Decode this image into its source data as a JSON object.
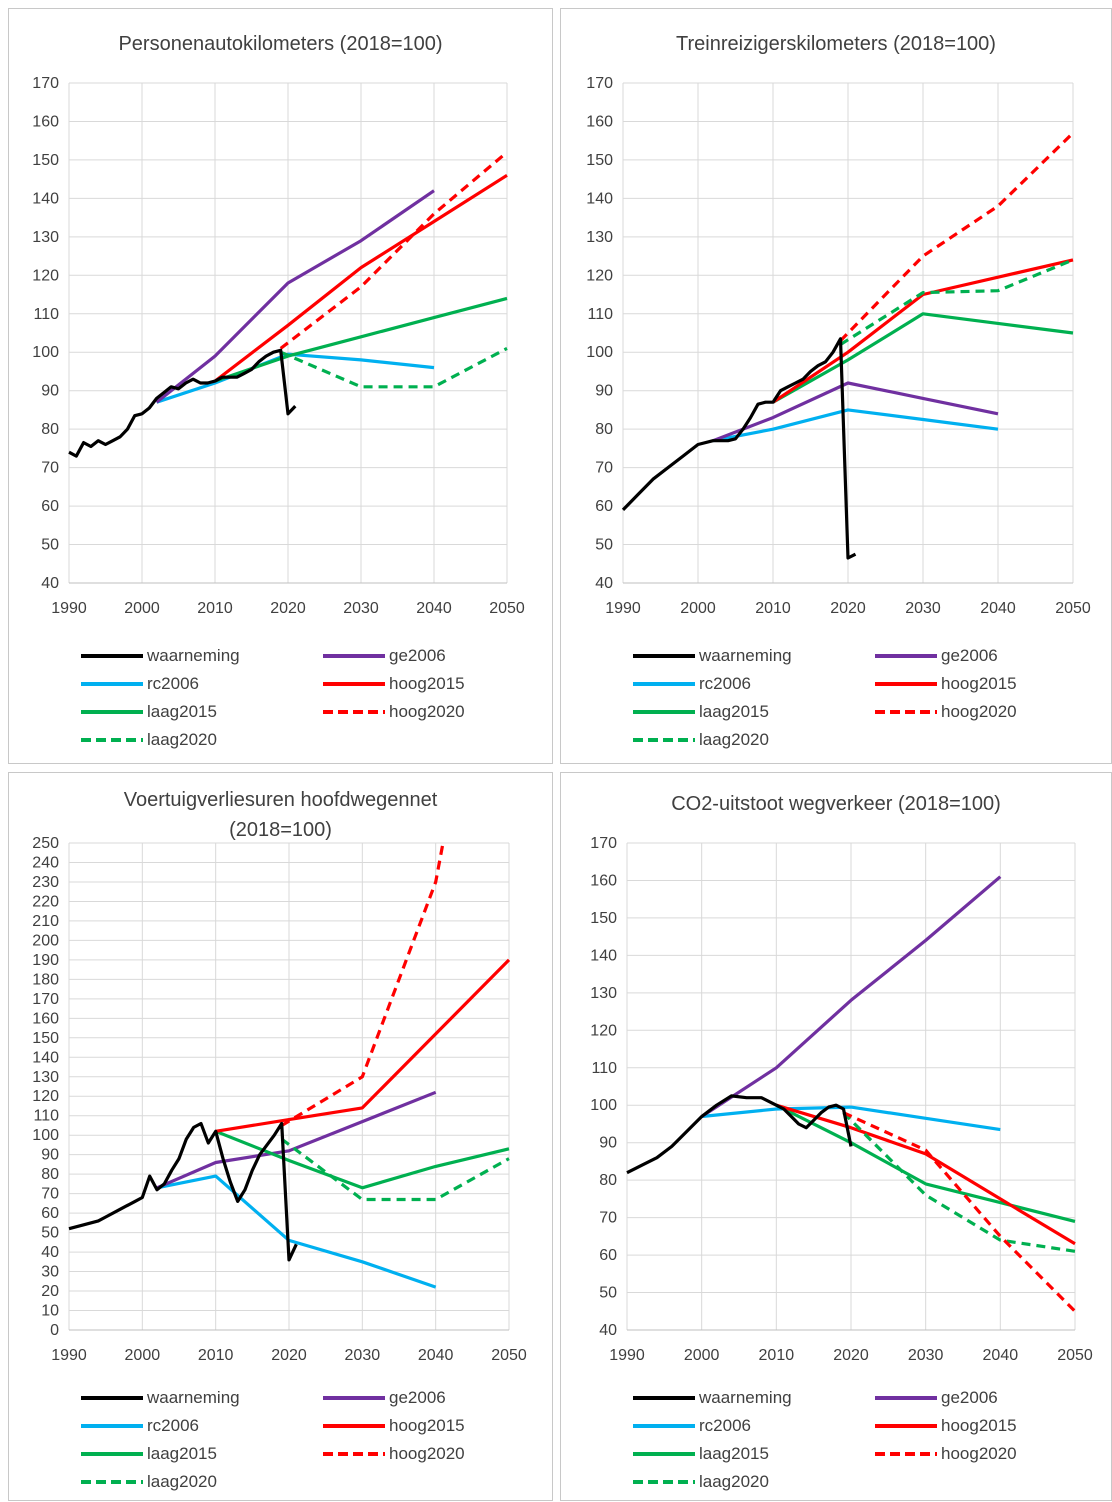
{
  "legend_labels": [
    "waarneming",
    "ge2006",
    "rc2006",
    "hoog2015",
    "laag2015",
    "hoog2020",
    "laag2020"
  ],
  "series_styles": {
    "waarneming": {
      "color": "#000000",
      "dash": false
    },
    "ge2006": {
      "color": "#7030a0",
      "dash": false
    },
    "rc2006": {
      "color": "#00b0f0",
      "dash": false
    },
    "hoog2015": {
      "color": "#ff0000",
      "dash": false
    },
    "laag2015": {
      "color": "#00b050",
      "dash": false
    },
    "hoog2020": {
      "color": "#ff0000",
      "dash": true
    },
    "laag2020": {
      "color": "#00b050",
      "dash": true
    }
  },
  "chart_data": [
    {
      "type": "line",
      "title": "Personenautokilometers (2018=100)",
      "xlim": [
        1990,
        2050
      ],
      "ylim": [
        40,
        170
      ],
      "ystep": 10,
      "xticks": [
        1990,
        2000,
        2010,
        2020,
        2030,
        2040,
        2050
      ],
      "series": [
        {
          "name": "waarneming",
          "points": [
            [
              1990,
              74
            ],
            [
              1991,
              73
            ],
            [
              1992,
              76.5
            ],
            [
              1993,
              75.5
            ],
            [
              1994,
              77
            ],
            [
              1995,
              76
            ],
            [
              1996,
              77
            ],
            [
              1997,
              78
            ],
            [
              1998,
              80
            ],
            [
              1999,
              83.5
            ],
            [
              2000,
              84
            ],
            [
              2001,
              85.5
            ],
            [
              2002,
              88
            ],
            [
              2003,
              89.5
            ],
            [
              2004,
              91
            ],
            [
              2005,
              90.5
            ],
            [
              2006,
              92
            ],
            [
              2007,
              93
            ],
            [
              2008,
              92
            ],
            [
              2009,
              92
            ],
            [
              2010,
              92.5
            ],
            [
              2011,
              93.5
            ],
            [
              2012,
              93.5
            ],
            [
              2013,
              93.5
            ],
            [
              2014,
              94.5
            ],
            [
              2015,
              95.5
            ],
            [
              2016,
              97.5
            ],
            [
              2017,
              99
            ],
            [
              2018,
              100
            ],
            [
              2019,
              100.5
            ],
            [
              2020,
              84
            ],
            [
              2021,
              86
            ]
          ]
        },
        {
          "name": "ge2006",
          "points": [
            [
              2002,
              87
            ],
            [
              2010,
              99
            ],
            [
              2020,
              118
            ],
            [
              2030,
              129
            ],
            [
              2040,
              142
            ]
          ]
        },
        {
          "name": "rc2006",
          "points": [
            [
              2002,
              87
            ],
            [
              2010,
              92
            ],
            [
              2020,
              99.5
            ],
            [
              2030,
              98
            ],
            [
              2040,
              96
            ]
          ]
        },
        {
          "name": "hoog2015",
          "points": [
            [
              2010,
              92.5
            ],
            [
              2020,
              107
            ],
            [
              2030,
              122
            ],
            [
              2040,
              134
            ],
            [
              2050,
              146
            ]
          ]
        },
        {
          "name": "laag2015",
          "points": [
            [
              2010,
              92.5
            ],
            [
              2020,
              99
            ],
            [
              2030,
              104
            ],
            [
              2040,
              109
            ],
            [
              2050,
              114
            ]
          ]
        },
        {
          "name": "hoog2020",
          "points": [
            [
              2019,
              101
            ],
            [
              2030,
              117
            ],
            [
              2040,
              136
            ],
            [
              2050,
              152
            ]
          ]
        },
        {
          "name": "laag2020",
          "points": [
            [
              2019,
              100
            ],
            [
              2030,
              91
            ],
            [
              2040,
              91
            ],
            [
              2050,
              101
            ]
          ]
        }
      ]
    },
    {
      "type": "line",
      "title": "Treinreizigerskilometers (2018=100)",
      "xlim": [
        1990,
        2050
      ],
      "ylim": [
        40,
        170
      ],
      "ystep": 10,
      "xticks": [
        1990,
        2000,
        2010,
        2020,
        2030,
        2040,
        2050
      ],
      "series": [
        {
          "name": "waarneming",
          "points": [
            [
              1990,
              59
            ],
            [
              1992,
              63
            ],
            [
              1994,
              67
            ],
            [
              1996,
              70
            ],
            [
              1998,
              73
            ],
            [
              2000,
              76
            ],
            [
              2002,
              77
            ],
            [
              2004,
              77
            ],
            [
              2005,
              77.5
            ],
            [
              2006,
              80
            ],
            [
              2007,
              83
            ],
            [
              2008,
              86.5
            ],
            [
              2009,
              87
            ],
            [
              2010,
              87
            ],
            [
              2011,
              90
            ],
            [
              2012,
              91
            ],
            [
              2013,
              92
            ],
            [
              2014,
              93
            ],
            [
              2015,
              95
            ],
            [
              2016,
              96.5
            ],
            [
              2017,
              97.5
            ],
            [
              2018,
              100
            ],
            [
              2019,
              103.5
            ],
            [
              2020,
              46.5
            ],
            [
              2021,
              47.5
            ]
          ]
        },
        {
          "name": "ge2006",
          "points": [
            [
              2002,
              77
            ],
            [
              2010,
              83
            ],
            [
              2020,
              92
            ],
            [
              2030,
              88
            ],
            [
              2040,
              84
            ]
          ]
        },
        {
          "name": "rc2006",
          "points": [
            [
              2002,
              77
            ],
            [
              2010,
              80
            ],
            [
              2020,
              85
            ],
            [
              2030,
              82.5
            ],
            [
              2040,
              80
            ]
          ]
        },
        {
          "name": "hoog2015",
          "points": [
            [
              2010,
              87
            ],
            [
              2020,
              100
            ],
            [
              2030,
              115
            ],
            [
              2040,
              119.5
            ],
            [
              2050,
              124
            ]
          ]
        },
        {
          "name": "laag2015",
          "points": [
            [
              2010,
              87
            ],
            [
              2020,
              98
            ],
            [
              2030,
              110
            ],
            [
              2040,
              107.5
            ],
            [
              2050,
              105
            ]
          ]
        },
        {
          "name": "hoog2020",
          "points": [
            [
              2019,
              103
            ],
            [
              2030,
              125
            ],
            [
              2040,
              138
            ],
            [
              2050,
              157
            ]
          ]
        },
        {
          "name": "laag2020",
          "points": [
            [
              2019,
              102
            ],
            [
              2030,
              115.5
            ],
            [
              2040,
              116
            ],
            [
              2050,
              124
            ]
          ]
        }
      ]
    },
    {
      "type": "line",
      "title": "Voertuigverliesuren hoofdwegennet (2018=100)",
      "title_lines": [
        "Voertuigverliesuren hoofdwegennet",
        "(2018=100)"
      ],
      "xlim": [
        1990,
        2050
      ],
      "ylim": [
        0,
        250
      ],
      "ystep": 10,
      "xticks": [
        1990,
        2000,
        2010,
        2020,
        2030,
        2040,
        2050
      ],
      "series": [
        {
          "name": "waarneming",
          "points": [
            [
              1990,
              52
            ],
            [
              1992,
              54
            ],
            [
              1994,
              56
            ],
            [
              1995,
              58
            ],
            [
              1997,
              62
            ],
            [
              1999,
              66
            ],
            [
              2000,
              68
            ],
            [
              2001,
              79
            ],
            [
              2002,
              72
            ],
            [
              2003,
              75
            ],
            [
              2004,
              82
            ],
            [
              2005,
              88
            ],
            [
              2006,
              98
            ],
            [
              2007,
              104
            ],
            [
              2008,
              106
            ],
            [
              2009,
              96
            ],
            [
              2010,
              102
            ],
            [
              2011,
              88
            ],
            [
              2012,
              76
            ],
            [
              2013,
              66
            ],
            [
              2014,
              72
            ],
            [
              2015,
              82
            ],
            [
              2016,
              90
            ],
            [
              2017,
              95
            ],
            [
              2018,
              100
            ],
            [
              2019,
              106
            ],
            [
              2020,
              36
            ],
            [
              2021,
              44
            ]
          ]
        },
        {
          "name": "ge2006",
          "points": [
            [
              2002,
              73
            ],
            [
              2010,
              86
            ],
            [
              2020,
              92
            ],
            [
              2030,
              107
            ],
            [
              2040,
              122
            ]
          ]
        },
        {
          "name": "rc2006",
          "points": [
            [
              2002,
              73
            ],
            [
              2010,
              79
            ],
            [
              2020,
              46
            ],
            [
              2030,
              35
            ],
            [
              2040,
              22
            ]
          ]
        },
        {
          "name": "hoog2015",
          "points": [
            [
              2010,
              102
            ],
            [
              2020,
              108
            ],
            [
              2030,
              114
            ],
            [
              2040,
              152
            ],
            [
              2050,
              190
            ]
          ]
        },
        {
          "name": "laag2015",
          "points": [
            [
              2010,
              102
            ],
            [
              2020,
              87
            ],
            [
              2030,
              73
            ],
            [
              2040,
              84
            ],
            [
              2050,
              93
            ]
          ]
        },
        {
          "name": "hoog2020",
          "points": [
            [
              2019,
              105
            ],
            [
              2030,
              130
            ],
            [
              2040,
              230
            ],
            [
              2041,
              250
            ]
          ]
        },
        {
          "name": "laag2020",
          "points": [
            [
              2019,
              98
            ],
            [
              2030,
              67
            ],
            [
              2040,
              67
            ],
            [
              2050,
              88
            ]
          ]
        }
      ]
    },
    {
      "type": "line",
      "title": "CO2-uitstoot wegverkeer (2018=100)",
      "xlim": [
        1990,
        2050
      ],
      "ylim": [
        40,
        170
      ],
      "ystep": 10,
      "xticks": [
        1990,
        2000,
        2010,
        2020,
        2030,
        2040,
        2050
      ],
      "series": [
        {
          "name": "waarneming",
          "points": [
            [
              1990,
              82
            ],
            [
              1992,
              84
            ],
            [
              1994,
              86
            ],
            [
              1996,
              89
            ],
            [
              1998,
              93
            ],
            [
              2000,
              97
            ],
            [
              2002,
              100
            ],
            [
              2004,
              102.5
            ],
            [
              2006,
              102
            ],
            [
              2008,
              102
            ],
            [
              2010,
              100
            ],
            [
              2011,
              99
            ],
            [
              2012,
              97
            ],
            [
              2013,
              95
            ],
            [
              2014,
              94
            ],
            [
              2015,
              96
            ],
            [
              2016,
              98
            ],
            [
              2017,
              99.5
            ],
            [
              2018,
              100
            ],
            [
              2019,
              99
            ],
            [
              2020,
              89
            ]
          ]
        },
        {
          "name": "ge2006",
          "points": [
            [
              2000,
              97
            ],
            [
              2010,
              110
            ],
            [
              2020,
              128
            ],
            [
              2030,
              144
            ],
            [
              2040,
              161
            ]
          ]
        },
        {
          "name": "rc2006",
          "points": [
            [
              2000,
              97
            ],
            [
              2010,
              99
            ],
            [
              2020,
              99.5
            ],
            [
              2030,
              96.5
            ],
            [
              2040,
              93.5
            ]
          ]
        },
        {
          "name": "hoog2015",
          "points": [
            [
              2010,
              100
            ],
            [
              2020,
              94
            ],
            [
              2030,
              87
            ],
            [
              2040,
              75
            ],
            [
              2050,
              63
            ]
          ]
        },
        {
          "name": "laag2015",
          "points": [
            [
              2010,
              100
            ],
            [
              2020,
              90
            ],
            [
              2030,
              79
            ],
            [
              2040,
              74
            ],
            [
              2050,
              69
            ]
          ]
        },
        {
          "name": "hoog2020",
          "points": [
            [
              2019,
              98
            ],
            [
              2030,
              88
            ],
            [
              2040,
              65
            ],
            [
              2050,
              45
            ]
          ]
        },
        {
          "name": "laag2020",
          "points": [
            [
              2019,
              98
            ],
            [
              2030,
              76
            ],
            [
              2040,
              64
            ],
            [
              2050,
              61
            ]
          ]
        }
      ]
    }
  ]
}
